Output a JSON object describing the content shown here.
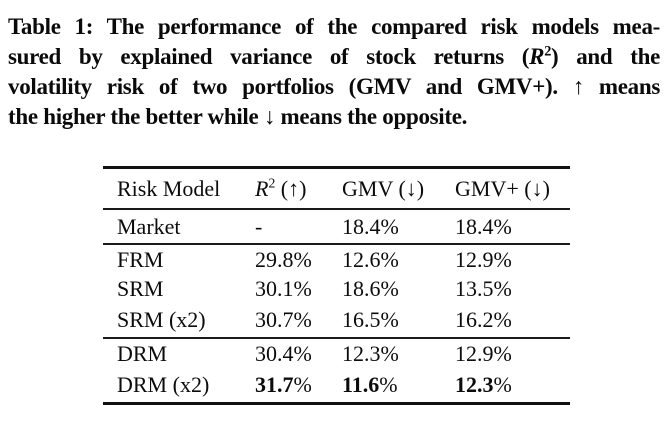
{
  "caption": {
    "line1": "Table 1: The performance of the compared risk models mea-",
    "line2_pre": "sured by explained variance of stock returns (",
    "r2_base": "R",
    "r2_sup": "2",
    "line2_post": ") and the",
    "line3": "volatility risk of two portfolios (GMV and GMV+). ↑ means",
    "line4": "the higher the better while ↓ means the opposite."
  },
  "table": {
    "headers": {
      "model": "Risk Model",
      "r2_base": "R",
      "r2_sup": "2",
      "r2_arrow": " (↑)",
      "gmv": "GMV (↓)",
      "gmvp": "GMV+ (↓)"
    },
    "rows": [
      {
        "model": "Market",
        "r2": "-",
        "gmv": "18.4%",
        "gmvp": "18.4%"
      },
      {
        "model": "FRM",
        "r2": "29.8%",
        "gmv": "12.6%",
        "gmvp": "12.9%"
      },
      {
        "model": "SRM",
        "r2": "30.1%",
        "gmv": "18.6%",
        "gmvp": "13.5%"
      },
      {
        "model": "SRM (x2)",
        "r2": "30.7%",
        "gmv": "16.5%",
        "gmvp": "16.2%"
      },
      {
        "model": "DRM",
        "r2": "30.4%",
        "gmv": "12.3%",
        "gmvp": "12.9%"
      },
      {
        "model": "DRM (x2)",
        "r2_bold": "31.7",
        "gmv_bold": "11.6",
        "gmvp_bold": "12.3",
        "pct": "%"
      }
    ],
    "colors": {
      "text": "#0c0c0c",
      "rule": "#1a1a1a",
      "background": "#ffffff"
    }
  }
}
